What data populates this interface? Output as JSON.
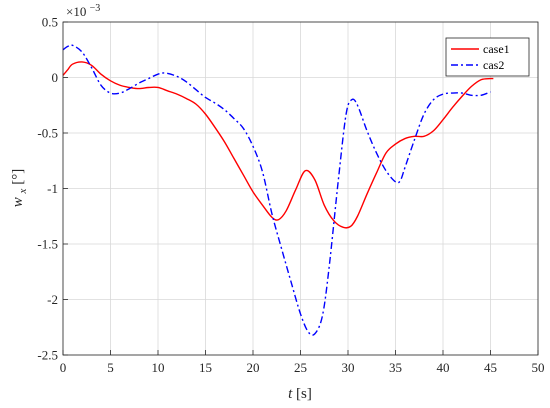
{
  "chart_data": {
    "type": "line",
    "xlabel_var": "t",
    "xlabel_unit": "[s]",
    "ylabel_var": "w",
    "ylabel_sub": "x",
    "ylabel_unit": "[°]",
    "exponent_label": "×10",
    "exponent_power": "−3",
    "xlim": [
      0,
      50
    ],
    "ylim": [
      -2.5,
      0.5
    ],
    "xticks": [
      0,
      5,
      10,
      15,
      20,
      25,
      30,
      35,
      40,
      45,
      50
    ],
    "yticks": [
      0.5,
      0,
      -0.5,
      -1,
      -1.5,
      -2,
      -2.5
    ],
    "xtick_labels": [
      "0",
      "5",
      "10",
      "15",
      "20",
      "25",
      "30",
      "35",
      "40",
      "45",
      "50"
    ],
    "ytick_labels": [
      "0.5",
      "0",
      "-0.5",
      "-1",
      "-1.5",
      "-2",
      "-2.5"
    ],
    "grid": true,
    "legend_position": "top-right",
    "series": [
      {
        "name": "case1",
        "color": "#ff0000",
        "dash": "solid",
        "x": [
          0,
          0.5,
          1,
          2,
          3,
          4,
          5,
          6,
          7,
          8,
          9,
          10,
          11,
          12,
          13,
          14,
          15,
          16,
          17,
          18,
          19,
          20,
          21,
          22,
          22.7,
          23.5,
          24.5,
          25.5,
          26.5,
          27.5,
          28.5,
          29.5,
          30.3,
          31,
          32,
          33,
          34,
          35,
          36,
          37,
          38,
          39,
          40,
          41,
          42,
          43,
          44,
          45,
          45.3
        ],
        "y": [
          0.02,
          0.07,
          0.12,
          0.14,
          0.11,
          0.03,
          -0.03,
          -0.07,
          -0.09,
          -0.1,
          -0.09,
          -0.09,
          -0.12,
          -0.15,
          -0.19,
          -0.24,
          -0.33,
          -0.45,
          -0.58,
          -0.73,
          -0.88,
          -1.03,
          -1.15,
          -1.26,
          -1.28,
          -1.2,
          -1.01,
          -0.84,
          -0.92,
          -1.15,
          -1.29,
          -1.35,
          -1.34,
          -1.25,
          -1.05,
          -0.86,
          -0.68,
          -0.6,
          -0.55,
          -0.53,
          -0.53,
          -0.48,
          -0.38,
          -0.27,
          -0.17,
          -0.08,
          -0.02,
          -0.01,
          -0.01
        ]
      },
      {
        "name": "cas2",
        "color": "#0000ff",
        "dash": "dashdot",
        "x": [
          0,
          0.5,
          1,
          2,
          3,
          4,
          5,
          6,
          7,
          8,
          9,
          10,
          10.8,
          12,
          13,
          14,
          15,
          16,
          17,
          18,
          19,
          20,
          21,
          22,
          23,
          24,
          25,
          25.8,
          26.5,
          27.3,
          28,
          29,
          29.8,
          30.4,
          31,
          32,
          33,
          34,
          35,
          35.5,
          36,
          37,
          38,
          39,
          40,
          41,
          42,
          43,
          44,
          45
        ],
        "y": [
          0.25,
          0.28,
          0.29,
          0.23,
          0.09,
          -0.07,
          -0.14,
          -0.14,
          -0.1,
          -0.05,
          -0.01,
          0.03,
          0.04,
          0.01,
          -0.04,
          -0.11,
          -0.18,
          -0.23,
          -0.29,
          -0.37,
          -0.46,
          -0.62,
          -0.85,
          -1.23,
          -1.54,
          -1.84,
          -2.13,
          -2.29,
          -2.31,
          -2.15,
          -1.72,
          -0.91,
          -0.33,
          -0.2,
          -0.25,
          -0.48,
          -0.68,
          -0.84,
          -0.94,
          -0.93,
          -0.81,
          -0.56,
          -0.33,
          -0.2,
          -0.15,
          -0.14,
          -0.14,
          -0.16,
          -0.16,
          -0.13
        ]
      }
    ]
  }
}
